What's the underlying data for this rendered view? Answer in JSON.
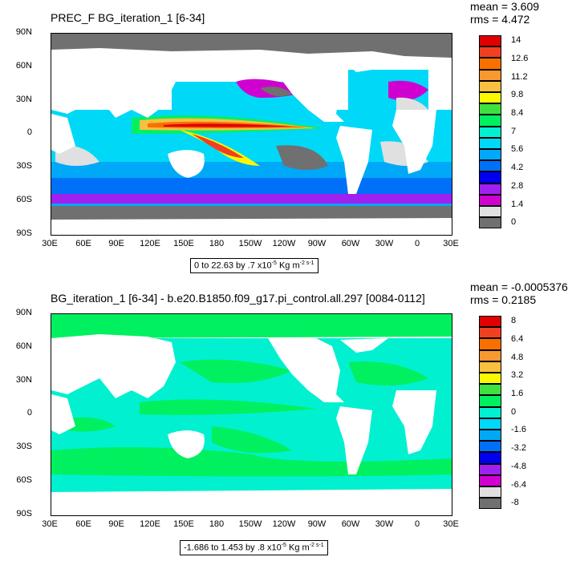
{
  "top": {
    "title": "PREC_F BG_iteration_1 [6-34]",
    "mean": "mean = 3.609",
    "rms": "rms = 4.472",
    "range_text": "0 to 22.63 by .7 x10",
    "range_exp": "-5",
    "range_units": "Kg m",
    "range_units_exp": "-2 s-1",
    "colorbar": {
      "labels": [
        "14",
        "12.6",
        "11.2",
        "9.8",
        "8.4",
        "7",
        "5.6",
        "4.2",
        "2.8",
        "1.4",
        "0"
      ],
      "colors": [
        "#e00000",
        "#f04020",
        "#f87000",
        "#f89830",
        "#f8c040",
        "#f8f800",
        "#40e040",
        "#00f060",
        "#00f0d0",
        "#00d8f8",
        "#00a8f8",
        "#0070f8",
        "#0000f0",
        "#a020f0",
        "#d000d0",
        "#e0e0e0",
        "#707070"
      ]
    }
  },
  "bottom": {
    "title": "BG_iteration_1 [6-34] - b.e20.B1850.f09_g17.pi_control.all.297 [0084-0112]",
    "mean": "mean = -0.0005376",
    "rms": "rms = 0.2185",
    "range_text": "-1.686 to 1.453 by .8 x10",
    "range_exp": "-5",
    "range_units": "Kg m",
    "range_units_exp": "-2 s-1",
    "colorbar": {
      "labels": [
        "8",
        "6.4",
        "4.8",
        "3.2",
        "1.6",
        "0",
        "-1.6",
        "-3.2",
        "-4.8",
        "-6.4",
        "-8"
      ],
      "colors": [
        "#e00000",
        "#f04020",
        "#f87000",
        "#f89830",
        "#f8c040",
        "#f8f800",
        "#40e040",
        "#00f060",
        "#00f0d0",
        "#00d8f8",
        "#00a8f8",
        "#0070f8",
        "#0000f0",
        "#a020f0",
        "#d000d0",
        "#e0e0e0",
        "#707070"
      ]
    }
  },
  "lat_ticks": [
    "90N",
    "60N",
    "30N",
    "0",
    "30S",
    "60S",
    "90S"
  ],
  "lon_ticks": [
    "30E",
    "60E",
    "90E",
    "120E",
    "150E",
    "180",
    "150W",
    "120W",
    "90W",
    "60W",
    "30W",
    "0",
    "30E"
  ]
}
